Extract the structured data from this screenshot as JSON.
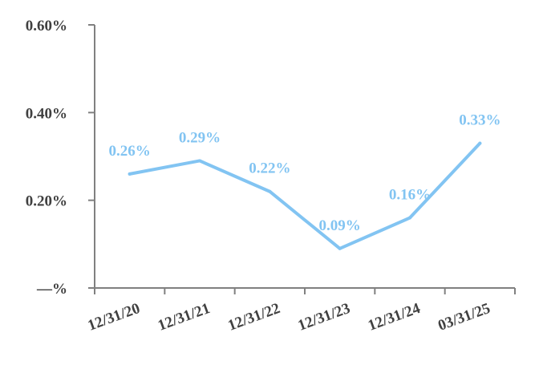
{
  "chart_data": {
    "type": "line",
    "categories": [
      "12/31/20",
      "12/31/21",
      "12/31/22",
      "12/31/23",
      "12/31/24",
      "03/31/25"
    ],
    "values": [
      0.26,
      0.29,
      0.22,
      0.09,
      0.16,
      0.33
    ],
    "data_labels": [
      "0.26%",
      "0.29%",
      "0.22%",
      "0.09%",
      "0.16%",
      "0.33%"
    ],
    "y_tick_values": [
      0,
      0.2,
      0.4,
      0.6
    ],
    "y_tick_labels": [
      "—%",
      "0.20%",
      "0.40%",
      "0.60%"
    ],
    "ylim": [
      0,
      0.6
    ],
    "title": "",
    "xlabel": "",
    "ylabel": "",
    "grid": false,
    "legend": "none",
    "colors": {
      "line": "#82c4f2",
      "label": "#82c4f2",
      "axis": "#808080",
      "tick_text": "#404040"
    }
  }
}
